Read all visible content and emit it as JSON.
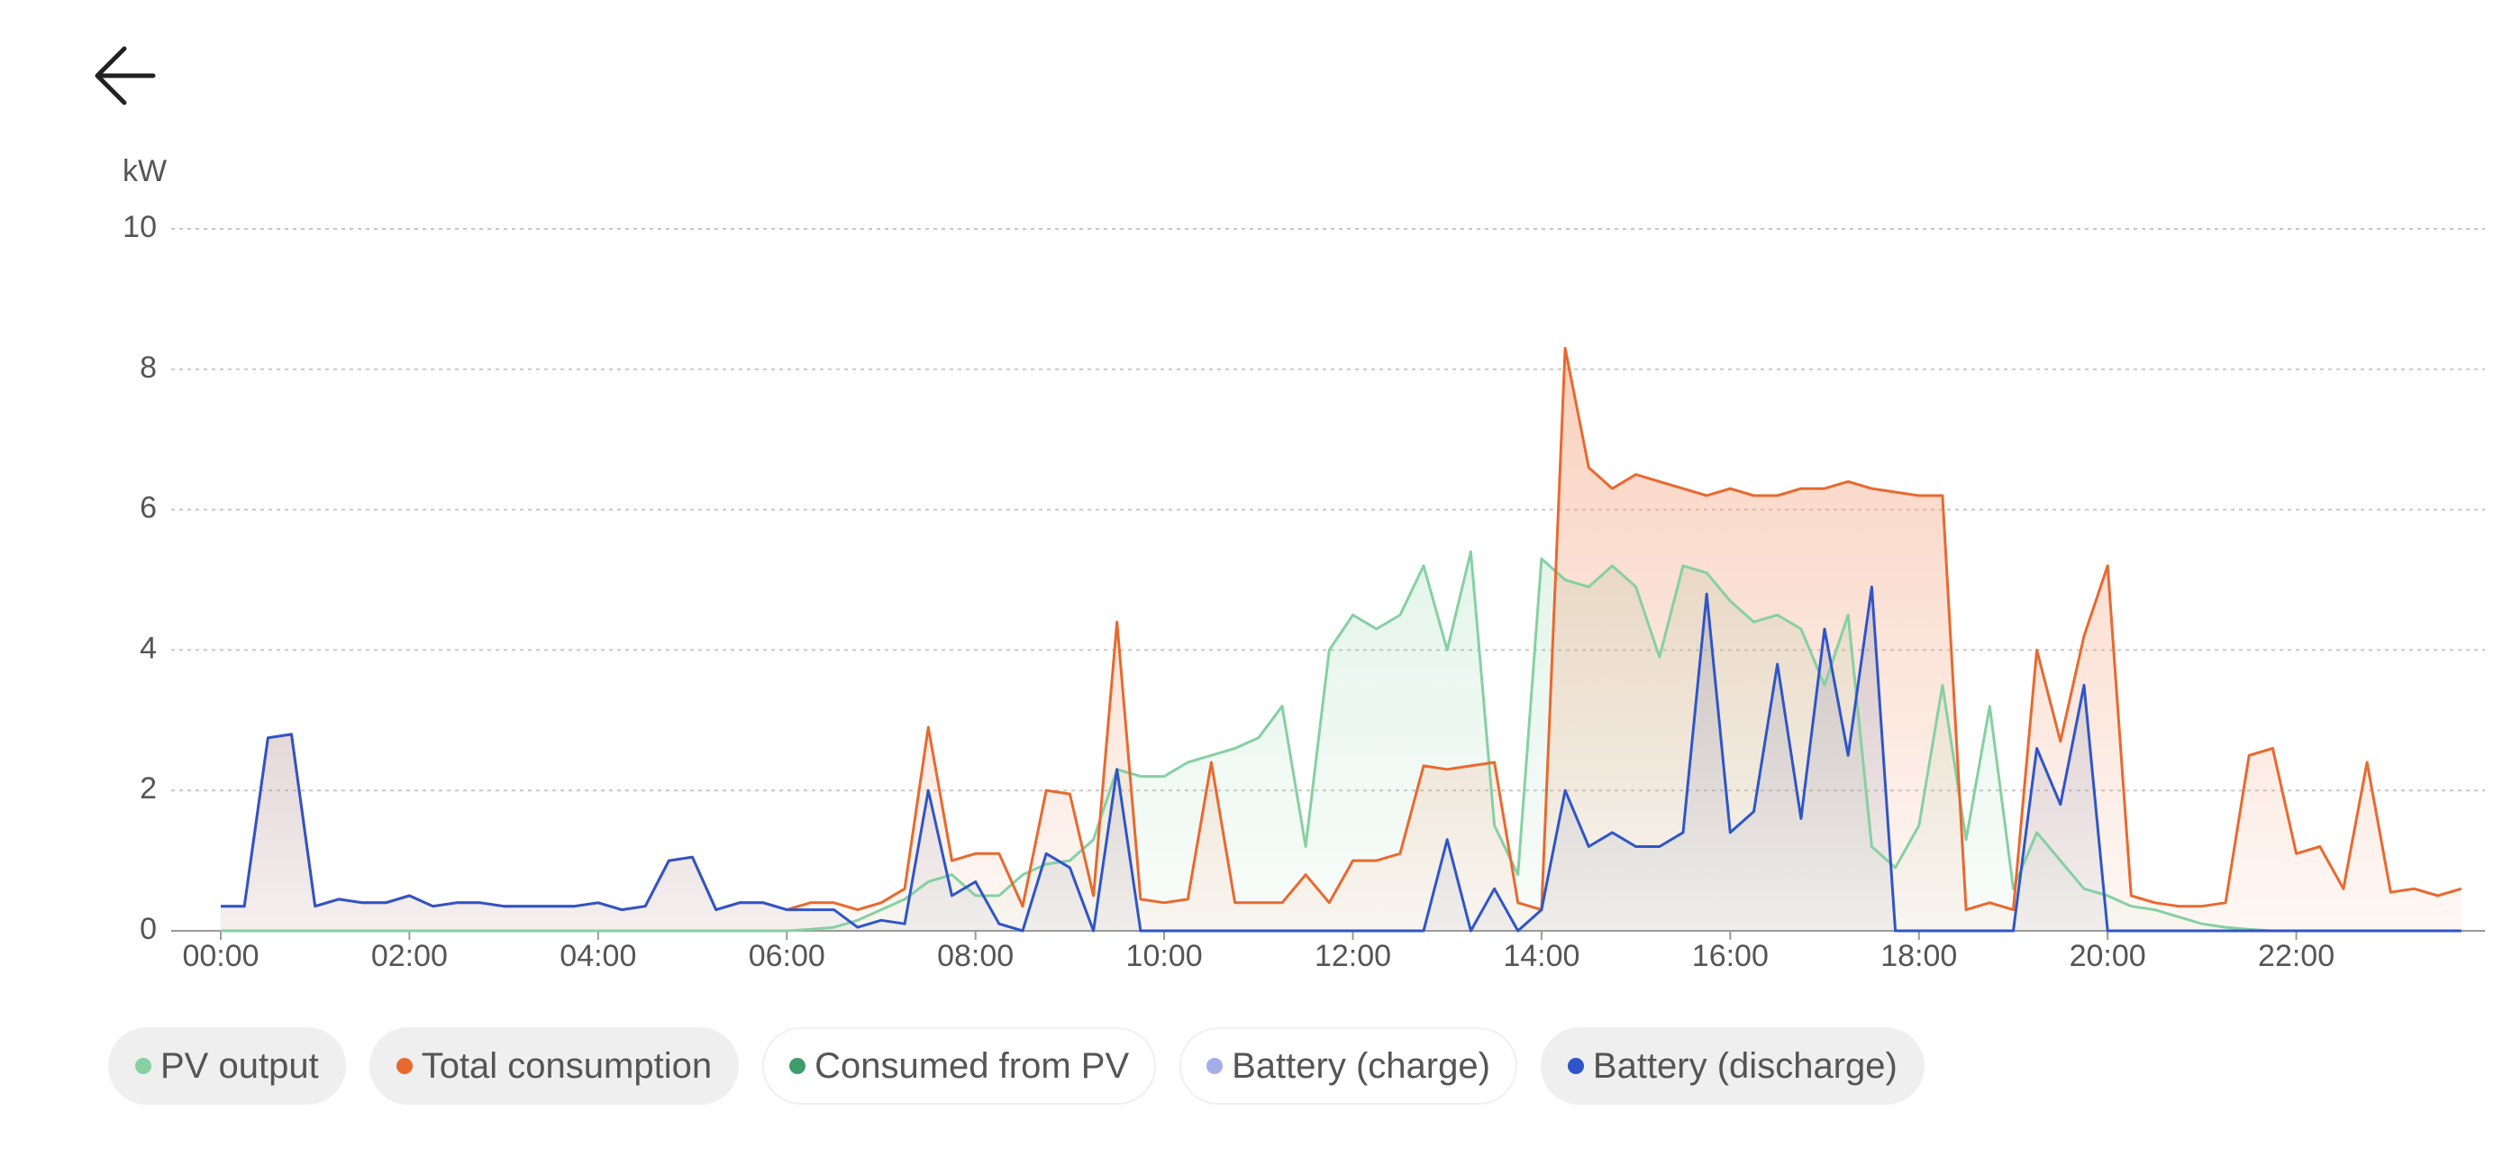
{
  "chart_data": {
    "type": "line",
    "y_label": "kW",
    "x": [
      0,
      0.25,
      0.5,
      0.75,
      1,
      1.25,
      1.5,
      1.75,
      2,
      2.25,
      2.5,
      2.75,
      3,
      3.25,
      3.5,
      3.75,
      4,
      4.25,
      4.5,
      4.75,
      5,
      5.25,
      5.5,
      5.75,
      6,
      6.25,
      6.5,
      6.75,
      7,
      7.25,
      7.5,
      7.75,
      8,
      8.25,
      8.5,
      8.75,
      9,
      9.25,
      9.5,
      9.75,
      10,
      10.25,
      10.5,
      10.75,
      11,
      11.25,
      11.5,
      11.75,
      12,
      12.25,
      12.5,
      12.75,
      13,
      13.25,
      13.5,
      13.75,
      14,
      14.25,
      14.5,
      14.75,
      15,
      15.25,
      15.5,
      15.75,
      16,
      16.25,
      16.5,
      16.75,
      17,
      17.25,
      17.5,
      17.75,
      18,
      18.25,
      18.5,
      18.75,
      19,
      19.25,
      19.5,
      19.75,
      20,
      20.25,
      20.5,
      20.75,
      21,
      21.25,
      21.5,
      21.75,
      22,
      22.25,
      22.5,
      22.75,
      23,
      23.25,
      23.5,
      23.75
    ],
    "xlim": [
      0,
      24
    ],
    "xticks": [
      {
        "value": 0,
        "label": "00:00"
      },
      {
        "value": 2,
        "label": "02:00"
      },
      {
        "value": 4,
        "label": "04:00"
      },
      {
        "value": 6,
        "label": "06:00"
      },
      {
        "value": 8,
        "label": "08:00"
      },
      {
        "value": 10,
        "label": "10:00"
      },
      {
        "value": 12,
        "label": "12:00"
      },
      {
        "value": 14,
        "label": "14:00"
      },
      {
        "value": 16,
        "label": "16:00"
      },
      {
        "value": 18,
        "label": "18:00"
      },
      {
        "value": 20,
        "label": "20:00"
      },
      {
        "value": 22,
        "label": "22:00"
      }
    ],
    "ylim": [
      0,
      10
    ],
    "yticks": [
      0,
      2,
      4,
      6,
      8,
      10
    ],
    "grid": true,
    "series": [
      {
        "name": "PV output",
        "color": "#86d0a2",
        "visible": true,
        "values": [
          0,
          0,
          0,
          0,
          0,
          0,
          0,
          0,
          0,
          0,
          0,
          0,
          0,
          0,
          0,
          0,
          0,
          0,
          0,
          0,
          0,
          0,
          0,
          0,
          0,
          0.02,
          0.05,
          0.15,
          0.3,
          0.45,
          0.7,
          0.8,
          0.5,
          0.5,
          0.8,
          0.95,
          1.0,
          1.3,
          2.3,
          2.2,
          2.2,
          2.4,
          2.5,
          2.6,
          2.75,
          3.2,
          1.2,
          4.0,
          4.5,
          4.3,
          4.5,
          5.2,
          4.0,
          5.4,
          1.5,
          0.8,
          5.3,
          5.0,
          4.9,
          5.2,
          4.9,
          3.9,
          5.2,
          5.1,
          4.7,
          4.4,
          4.5,
          4.3,
          3.5,
          4.5,
          1.2,
          0.9,
          1.5,
          3.5,
          1.3,
          3.2,
          0.6,
          1.4,
          1.0,
          0.6,
          0.5,
          0.35,
          0.3,
          0.2,
          0.1,
          0.05,
          0.02,
          0,
          0,
          0,
          0,
          0,
          0,
          0,
          0,
          0
        ]
      },
      {
        "name": "Total consumption",
        "color": "#e8692f",
        "visible": true,
        "values": [
          0.35,
          0.35,
          2.75,
          2.8,
          0.35,
          0.45,
          0.4,
          0.4,
          0.5,
          0.35,
          0.4,
          0.4,
          0.35,
          0.35,
          0.35,
          0.35,
          0.4,
          0.3,
          0.35,
          1.0,
          1.05,
          0.3,
          0.4,
          0.4,
          0.3,
          0.4,
          0.4,
          0.3,
          0.4,
          0.6,
          2.9,
          1.0,
          1.1,
          1.1,
          0.35,
          2.0,
          1.95,
          0.5,
          4.4,
          0.45,
          0.4,
          0.45,
          2.4,
          0.4,
          0.4,
          0.4,
          0.8,
          0.4,
          1.0,
          1.0,
          1.1,
          2.35,
          2.3,
          2.35,
          2.4,
          0.4,
          0.3,
          8.3,
          6.6,
          6.3,
          6.5,
          6.4,
          6.3,
          6.2,
          6.3,
          6.2,
          6.2,
          6.3,
          6.3,
          6.4,
          6.3,
          6.25,
          6.2,
          6.2,
          0.3,
          0.4,
          0.3,
          4.0,
          2.7,
          4.2,
          5.2,
          0.5,
          0.4,
          0.35,
          0.35,
          0.4,
          2.5,
          2.6,
          1.1,
          1.2,
          0.6,
          2.4,
          0.55,
          0.6,
          0.5,
          0.6
        ]
      },
      {
        "name": "Consumed from PV",
        "color": "#3f9c6b",
        "visible": false
      },
      {
        "name": "Battery (charge)",
        "color": "#a3aee8",
        "visible": false
      },
      {
        "name": "Battery (discharge)",
        "color": "#2f55c8",
        "visible": true,
        "values": [
          0.35,
          0.35,
          2.75,
          2.8,
          0.35,
          0.45,
          0.4,
          0.4,
          0.5,
          0.35,
          0.4,
          0.4,
          0.35,
          0.35,
          0.35,
          0.35,
          0.4,
          0.3,
          0.35,
          1.0,
          1.05,
          0.3,
          0.4,
          0.4,
          0.3,
          0.3,
          0.3,
          0.05,
          0.15,
          0.1,
          2.0,
          0.5,
          0.7,
          0.1,
          0,
          1.1,
          0.9,
          0,
          2.3,
          0,
          0,
          0,
          0,
          0,
          0,
          0,
          0,
          0,
          0,
          0,
          0,
          0,
          1.3,
          0,
          0.6,
          0,
          0.3,
          2.0,
          1.2,
          1.4,
          1.2,
          1.2,
          1.4,
          4.8,
          1.4,
          1.7,
          3.8,
          1.6,
          4.3,
          2.5,
          4.9,
          0,
          0,
          0,
          0,
          0,
          0,
          2.6,
          1.8,
          3.5,
          0,
          0,
          0,
          0,
          0,
          0,
          0,
          0,
          0,
          0,
          0,
          0,
          0,
          0,
          0,
          0
        ]
      }
    ]
  }
}
